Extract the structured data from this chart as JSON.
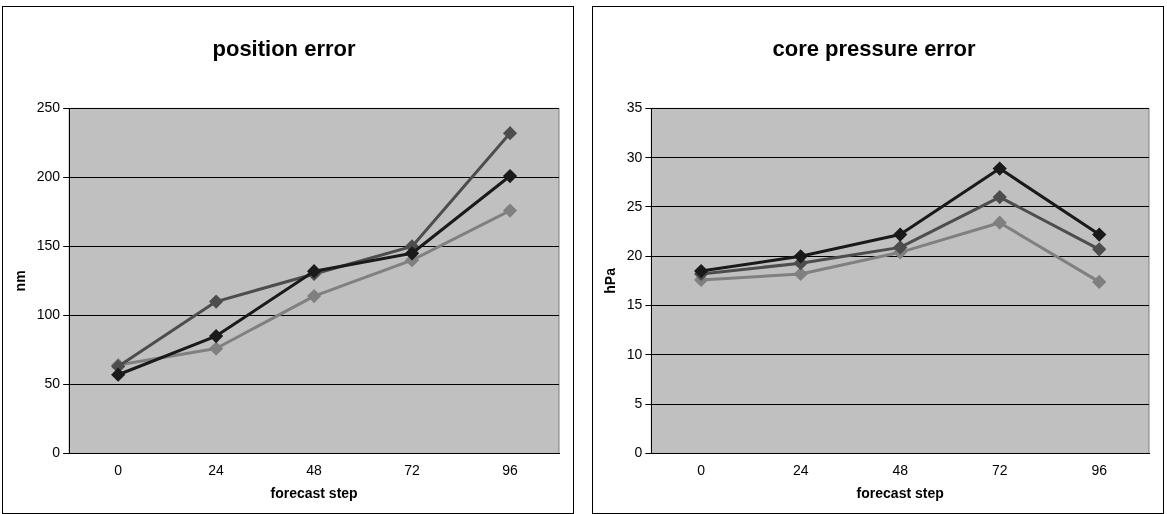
{
  "chart_data": [
    {
      "type": "line",
      "title": "position error",
      "xlabel": "forecast step",
      "ylabel": "nm",
      "categories": [
        "0",
        "24",
        "48",
        "72",
        "96"
      ],
      "ylim": [
        0,
        250
      ],
      "yticks": [
        0,
        50,
        100,
        150,
        200,
        250
      ],
      "grid": "y",
      "legend": false,
      "marker": "diamond",
      "line_style": "solid",
      "series": [
        {
          "color": "#1a1a1a",
          "values": [
            57,
            85,
            132,
            145,
            201
          ]
        },
        {
          "color": "#4d4d4d",
          "values": [
            63,
            110,
            130,
            150,
            232
          ]
        },
        {
          "color": "#808080",
          "values": [
            64,
            76,
            114,
            140,
            176
          ]
        }
      ]
    },
    {
      "type": "line",
      "title": "core pressure error",
      "xlabel": "forecast step",
      "ylabel": "hPa",
      "categories": [
        "0",
        "24",
        "48",
        "72",
        "96"
      ],
      "ylim": [
        0,
        35
      ],
      "yticks": [
        0,
        5,
        10,
        15,
        20,
        25,
        30,
        35
      ],
      "grid": "y",
      "legend": false,
      "marker": "diamond",
      "line_style": "solid",
      "series": [
        {
          "color": "#1a1a1a",
          "values": [
            18.5,
            20,
            22.2,
            28.9,
            22.2
          ]
        },
        {
          "color": "#4d4d4d",
          "values": [
            18.2,
            19.3,
            20.9,
            26,
            20.7
          ]
        },
        {
          "color": "#808080",
          "values": [
            17.6,
            18.2,
            20.4,
            23.4,
            17.4
          ]
        }
      ]
    }
  ]
}
